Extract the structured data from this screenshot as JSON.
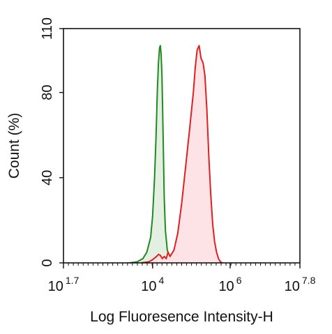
{
  "chart_data": {
    "type": "area",
    "xlabel": "Log Fluoresence Intensity-H",
    "ylabel": "Count  (%)",
    "x_scale": "log10",
    "xlim": [
      50.12,
      63095734
    ],
    "ylim": [
      0,
      110
    ],
    "x_ticks": [
      {
        "value": 50.12,
        "base": "10",
        "exp": "1.7"
      },
      {
        "value": 10000,
        "base": "10",
        "exp": "4"
      },
      {
        "value": 1000000,
        "base": "10",
        "exp": "6"
      },
      {
        "value": 63095734,
        "base": "10",
        "exp": "7.8"
      }
    ],
    "y_ticks": [
      0,
      40,
      80,
      110
    ],
    "grid": false,
    "series": [
      {
        "color": "#1f8a1f",
        "fill": "#e3efe1",
        "x": [
          2512,
          3981,
          5623,
          7079,
          8913,
          10000,
          11220,
          12303,
          13183,
          14125,
          15135,
          15849,
          16596,
          17378,
          18197,
          19055,
          19953,
          21380,
          23988,
          28184,
          35481
        ],
        "y": [
          0,
          0.5,
          2,
          5,
          12,
          22,
          40,
          60,
          80,
          94,
          101,
          102,
          98,
          88,
          70,
          50,
          30,
          15,
          6,
          2,
          0
        ]
      },
      {
        "color": "#e02020",
        "fill": "#fde3e6",
        "x": [
          5012,
          7943,
          10000,
          12589,
          14125,
          15849,
          17783,
          19953,
          22387,
          25119,
          28184,
          35481,
          44668,
          56234,
          70795,
          89125,
          112202,
          125893,
          141254,
          158489,
          177828,
          199526,
          223872,
          251189,
          281838,
          316228,
          354813,
          398107,
          446684,
          501187,
          562341,
          630957
        ],
        "y": [
          0,
          0.5,
          1.5,
          3,
          4,
          3.5,
          2,
          3,
          2,
          5,
          3,
          6,
          14,
          28,
          45,
          62,
          80,
          92,
          100,
          102,
          96,
          94,
          88,
          72,
          50,
          32,
          18,
          10,
          5,
          2,
          0.5,
          0
        ]
      }
    ]
  }
}
